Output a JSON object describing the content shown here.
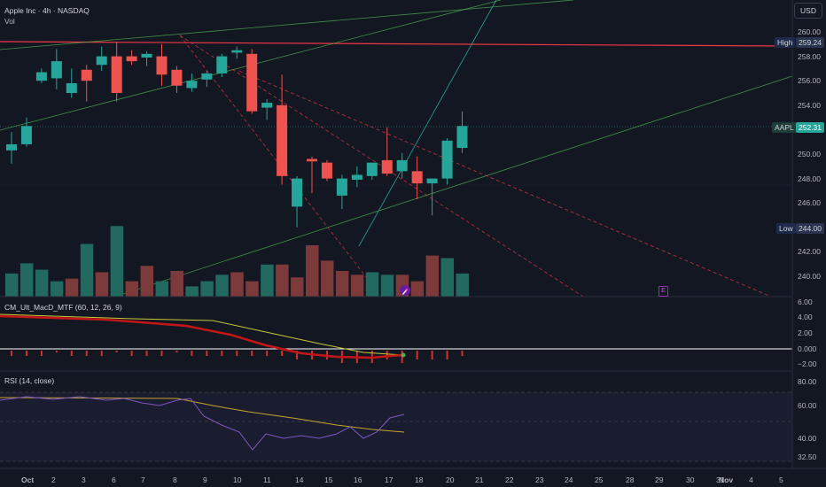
{
  "header": {
    "title": "Apple Inc · 4h · NASDAQ",
    "vol": "Vol"
  },
  "currency_button": "USD",
  "price_axis": {
    "ticks": [
      "260.00",
      "258.00",
      "256.00",
      "254.00",
      "252.00",
      "250.00",
      "248.00",
      "246.00",
      "244.00",
      "242.00",
      "240.00"
    ],
    "high_label": "High",
    "high_value": "259.24",
    "ticker_label": "AAPL",
    "ticker_value": "252.31",
    "low_label": "Low",
    "low_value": "244.00"
  },
  "macd": {
    "title": "CM_Ult_MacD_MTF (60, 12, 26, 9)",
    "ticks": [
      "6.00",
      "4.00",
      "2.00",
      "0.000",
      "−2.00"
    ]
  },
  "rsi": {
    "title": "RSI (14, close)",
    "ticks": [
      "80.00",
      "60.00",
      "40.00",
      "32.50"
    ]
  },
  "time_axis": [
    "Oct",
    "2",
    "3",
    "6",
    "7",
    "8",
    "9",
    "10",
    "11",
    "14",
    "15",
    "16",
    "17",
    "18",
    "20",
    "21",
    "22",
    "23",
    "24",
    "25",
    "28",
    "29",
    "30",
    "31",
    "Nov",
    "4",
    "5"
  ],
  "earnings_marker": "E",
  "colors": {
    "up": "#26a69a",
    "down": "#ef5350",
    "bg": "#131722",
    "grid": "#2a2e39",
    "high_line": "#f23645",
    "trend": "#4caf50"
  },
  "chart_data": {
    "type": "candlestick",
    "ohlc": [
      {
        "o": 250.3,
        "h": 251.8,
        "l": 249.2,
        "c": 250.8
      },
      {
        "o": 250.8,
        "h": 253.0,
        "l": 250.6,
        "c": 252.3
      },
      {
        "o": 256.0,
        "h": 257.0,
        "l": 255.8,
        "c": 256.7
      },
      {
        "o": 256.2,
        "h": 258.6,
        "l": 255.3,
        "c": 257.6
      },
      {
        "o": 255.0,
        "h": 257.0,
        "l": 254.6,
        "c": 255.8
      },
      {
        "o": 256.9,
        "h": 257.3,
        "l": 254.3,
        "c": 256.0
      },
      {
        "o": 257.3,
        "h": 258.8,
        "l": 256.8,
        "c": 258.0
      },
      {
        "o": 258.0,
        "h": 259.2,
        "l": 254.3,
        "c": 255.0
      },
      {
        "o": 258.0,
        "h": 258.5,
        "l": 257.3,
        "c": 257.6
      },
      {
        "o": 257.9,
        "h": 258.4,
        "l": 257.2,
        "c": 258.2
      },
      {
        "o": 258.0,
        "h": 259.0,
        "l": 255.6,
        "c": 256.5
      },
      {
        "o": 256.9,
        "h": 257.2,
        "l": 255.0,
        "c": 255.6
      },
      {
        "o": 255.4,
        "h": 256.6,
        "l": 255.1,
        "c": 256.0
      },
      {
        "o": 256.1,
        "h": 256.8,
        "l": 255.5,
        "c": 256.6
      },
      {
        "o": 256.6,
        "h": 258.2,
        "l": 256.3,
        "c": 258.0
      },
      {
        "o": 258.3,
        "h": 258.8,
        "l": 257.8,
        "c": 258.5
      },
      {
        "o": 258.2,
        "h": 258.6,
        "l": 253.3,
        "c": 253.5
      },
      {
        "o": 253.8,
        "h": 254.5,
        "l": 252.8,
        "c": 254.2
      },
      {
        "o": 254.0,
        "h": 256.5,
        "l": 247.5,
        "c": 248.2
      },
      {
        "o": 245.7,
        "h": 248.2,
        "l": 244.0,
        "c": 248.0
      },
      {
        "o": 249.6,
        "h": 249.8,
        "l": 246.8,
        "c": 249.4
      },
      {
        "o": 249.3,
        "h": 249.5,
        "l": 247.8,
        "c": 248.0
      },
      {
        "o": 246.6,
        "h": 248.3,
        "l": 245.5,
        "c": 248.0
      },
      {
        "o": 247.9,
        "h": 249.0,
        "l": 247.3,
        "c": 248.3
      },
      {
        "o": 248.2,
        "h": 249.2,
        "l": 247.9,
        "c": 249.3
      },
      {
        "o": 249.5,
        "h": 252.2,
        "l": 248.2,
        "c": 248.4
      },
      {
        "o": 248.6,
        "h": 250.1,
        "l": 248.0,
        "c": 249.5
      },
      {
        "o": 248.6,
        "h": 249.8,
        "l": 246.3,
        "c": 247.6
      },
      {
        "o": 247.6,
        "h": 247.9,
        "l": 245.0,
        "c": 248.0
      },
      {
        "o": 248.0,
        "h": 251.3,
        "l": 247.5,
        "c": 251.1
      },
      {
        "o": 250.5,
        "h": 253.5,
        "l": 250.1,
        "c": 252.3
      }
    ],
    "volume_up": [
      true,
      true,
      true,
      true,
      false,
      true,
      false,
      true,
      false,
      false,
      true,
      false,
      true,
      true,
      true,
      false,
      false,
      true,
      false,
      false,
      false,
      false,
      false,
      false,
      true,
      true,
      false,
      false,
      false,
      true,
      true
    ],
    "volume": [
      18,
      26,
      21,
      12,
      14,
      41,
      19,
      55,
      12,
      24,
      12,
      20,
      8,
      12,
      17,
      19,
      12,
      25,
      25,
      15,
      40,
      28,
      20,
      17,
      19,
      17,
      17,
      12,
      32,
      30,
      18
    ],
    "macd_hist": [
      1,
      1,
      1,
      0,
      1,
      1,
      1,
      0,
      1,
      1,
      1,
      0,
      1,
      1,
      1,
      1,
      1,
      1,
      1,
      2,
      2,
      2,
      3,
      3,
      3,
      2,
      3,
      2,
      2,
      2,
      1
    ]
  }
}
